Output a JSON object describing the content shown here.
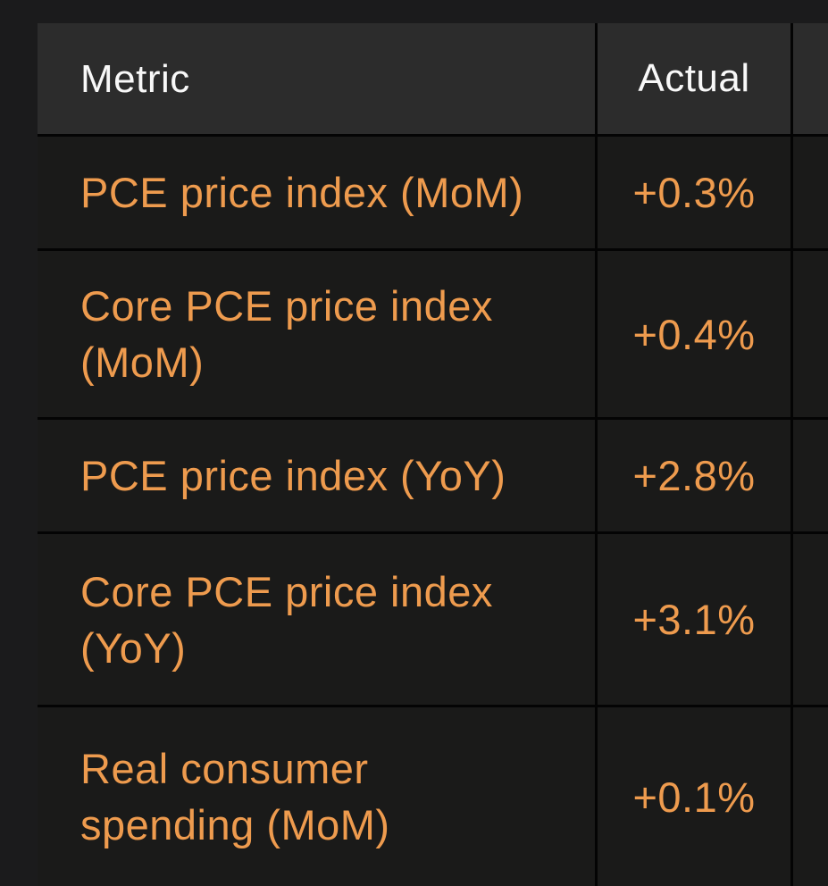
{
  "table": {
    "columns": [
      {
        "label": "Metric"
      },
      {
        "label": "Actual"
      }
    ],
    "rows": [
      {
        "metric": "PCE price index (MoM)",
        "actual": "+0.3%"
      },
      {
        "metric": "Core PCE price index\n(MoM)",
        "actual": "+0.4%"
      },
      {
        "metric": "PCE price index (YoY)",
        "actual": "+2.8%"
      },
      {
        "metric": "Core PCE price index\n(YoY)",
        "actual": "+3.1%"
      },
      {
        "metric": "Real consumer\nspending (MoM)",
        "actual": "+0.1%"
      }
    ],
    "colors": {
      "accent_orange": "#ee9b4e",
      "header_text": "#f8f8f8",
      "header_bg": "#2c2c2c",
      "cell_bg": "#1a1a19",
      "page_bg": "#1b1b1c",
      "separator": "#040404"
    }
  }
}
